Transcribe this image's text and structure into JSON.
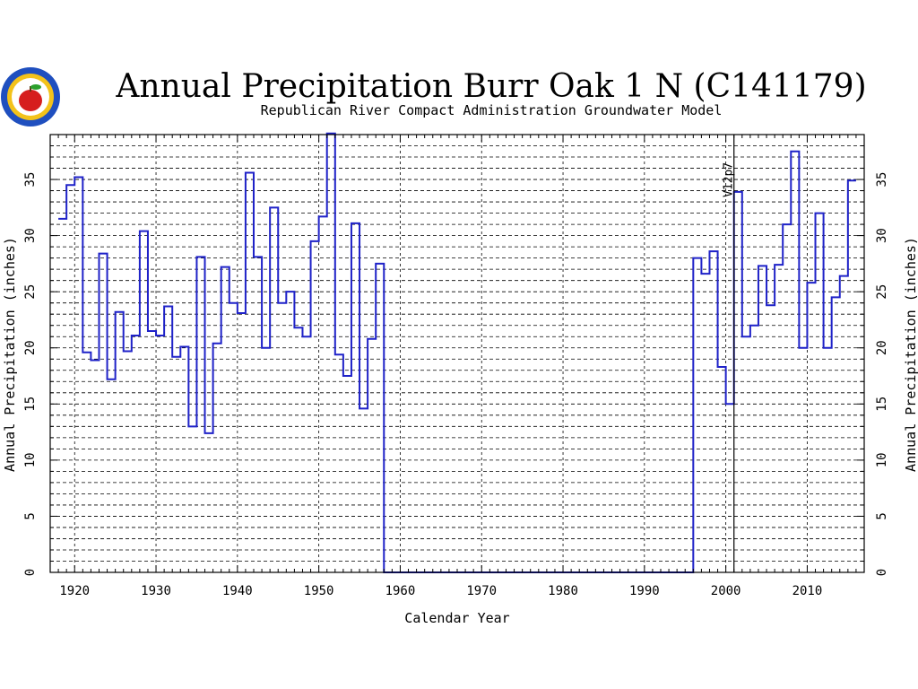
{
  "chart_data": {
    "type": "line",
    "step": true,
    "title": "Annual Precipitation Burr Oak 1 N (C141179)",
    "subtitle": "Republican River Compact Administration Groundwater Model",
    "xlabel": "Calendar Year",
    "ylabel": "Annual Precipitation (inches)",
    "xlim": [
      1917,
      2017
    ],
    "ylim": [
      0,
      39
    ],
    "x_ticks": [
      1920,
      1930,
      1940,
      1950,
      1960,
      1970,
      1980,
      1990,
      2000,
      2010
    ],
    "y_ticks": [
      0,
      5,
      10,
      15,
      20,
      25,
      30,
      35
    ],
    "grid": true,
    "annotation": {
      "text": "V12p7",
      "x": 2001
    },
    "series": [
      {
        "color": "#1f22c8",
        "start_years": [
          1918,
          1919,
          1920,
          1921,
          1922,
          1923,
          1924,
          1925,
          1926,
          1927,
          1928,
          1929,
          1930,
          1931,
          1932,
          1933,
          1934,
          1935,
          1936,
          1937,
          1938,
          1939,
          1940,
          1941,
          1942,
          1943,
          1944,
          1945,
          1946,
          1947,
          1948,
          1949,
          1950,
          1951,
          1952,
          1953,
          1954,
          1955,
          1956,
          1957,
          1958,
          1959,
          1960,
          1961,
          1962,
          1963,
          1964,
          1965,
          1966,
          1967,
          1968,
          1969,
          1970,
          1971,
          1972,
          1973,
          1974,
          1975,
          1976,
          1977,
          1978,
          1979,
          1980,
          1981,
          1982,
          1983,
          1984,
          1985,
          1986,
          1987,
          1988,
          1989,
          1990,
          1991,
          1992,
          1993,
          1994,
          1995,
          1996,
          1997,
          1998,
          1999,
          2000,
          2001,
          2002,
          2003,
          2004,
          2005,
          2006,
          2007,
          2008,
          2009,
          2010,
          2011,
          2012,
          2013,
          2014,
          2015,
          2016
        ],
        "values": [
          31.5,
          34.5,
          35.2,
          19.6,
          18.9,
          28.4,
          17.2,
          23.2,
          19.7,
          21.1,
          30.4,
          21.5,
          21.1,
          23.7,
          19.2,
          20.1,
          13.0,
          28.1,
          12.4,
          20.4,
          27.2,
          24.0,
          23.1,
          35.6,
          28.1,
          20.0,
          32.5,
          24.0,
          25.0,
          21.8,
          21.0,
          29.5,
          31.7,
          39.1,
          19.4,
          17.5,
          31.1,
          14.6,
          20.8,
          27.5,
          0,
          0,
          0,
          0,
          0,
          0,
          0,
          0,
          0,
          0,
          0,
          0,
          0,
          0,
          0,
          0,
          0,
          0,
          0,
          0,
          0,
          0,
          0,
          0,
          0,
          0,
          0,
          0,
          0,
          0,
          0,
          0,
          0,
          0,
          0,
          0,
          0,
          0,
          28.0,
          26.6,
          28.6,
          18.3,
          15.0,
          33.9,
          21.0,
          22.0,
          27.3,
          23.8,
          27.4,
          31.0,
          37.5,
          20.0,
          25.8,
          32.0,
          20.0,
          24.5,
          26.4,
          34.9
        ]
      }
    ]
  }
}
